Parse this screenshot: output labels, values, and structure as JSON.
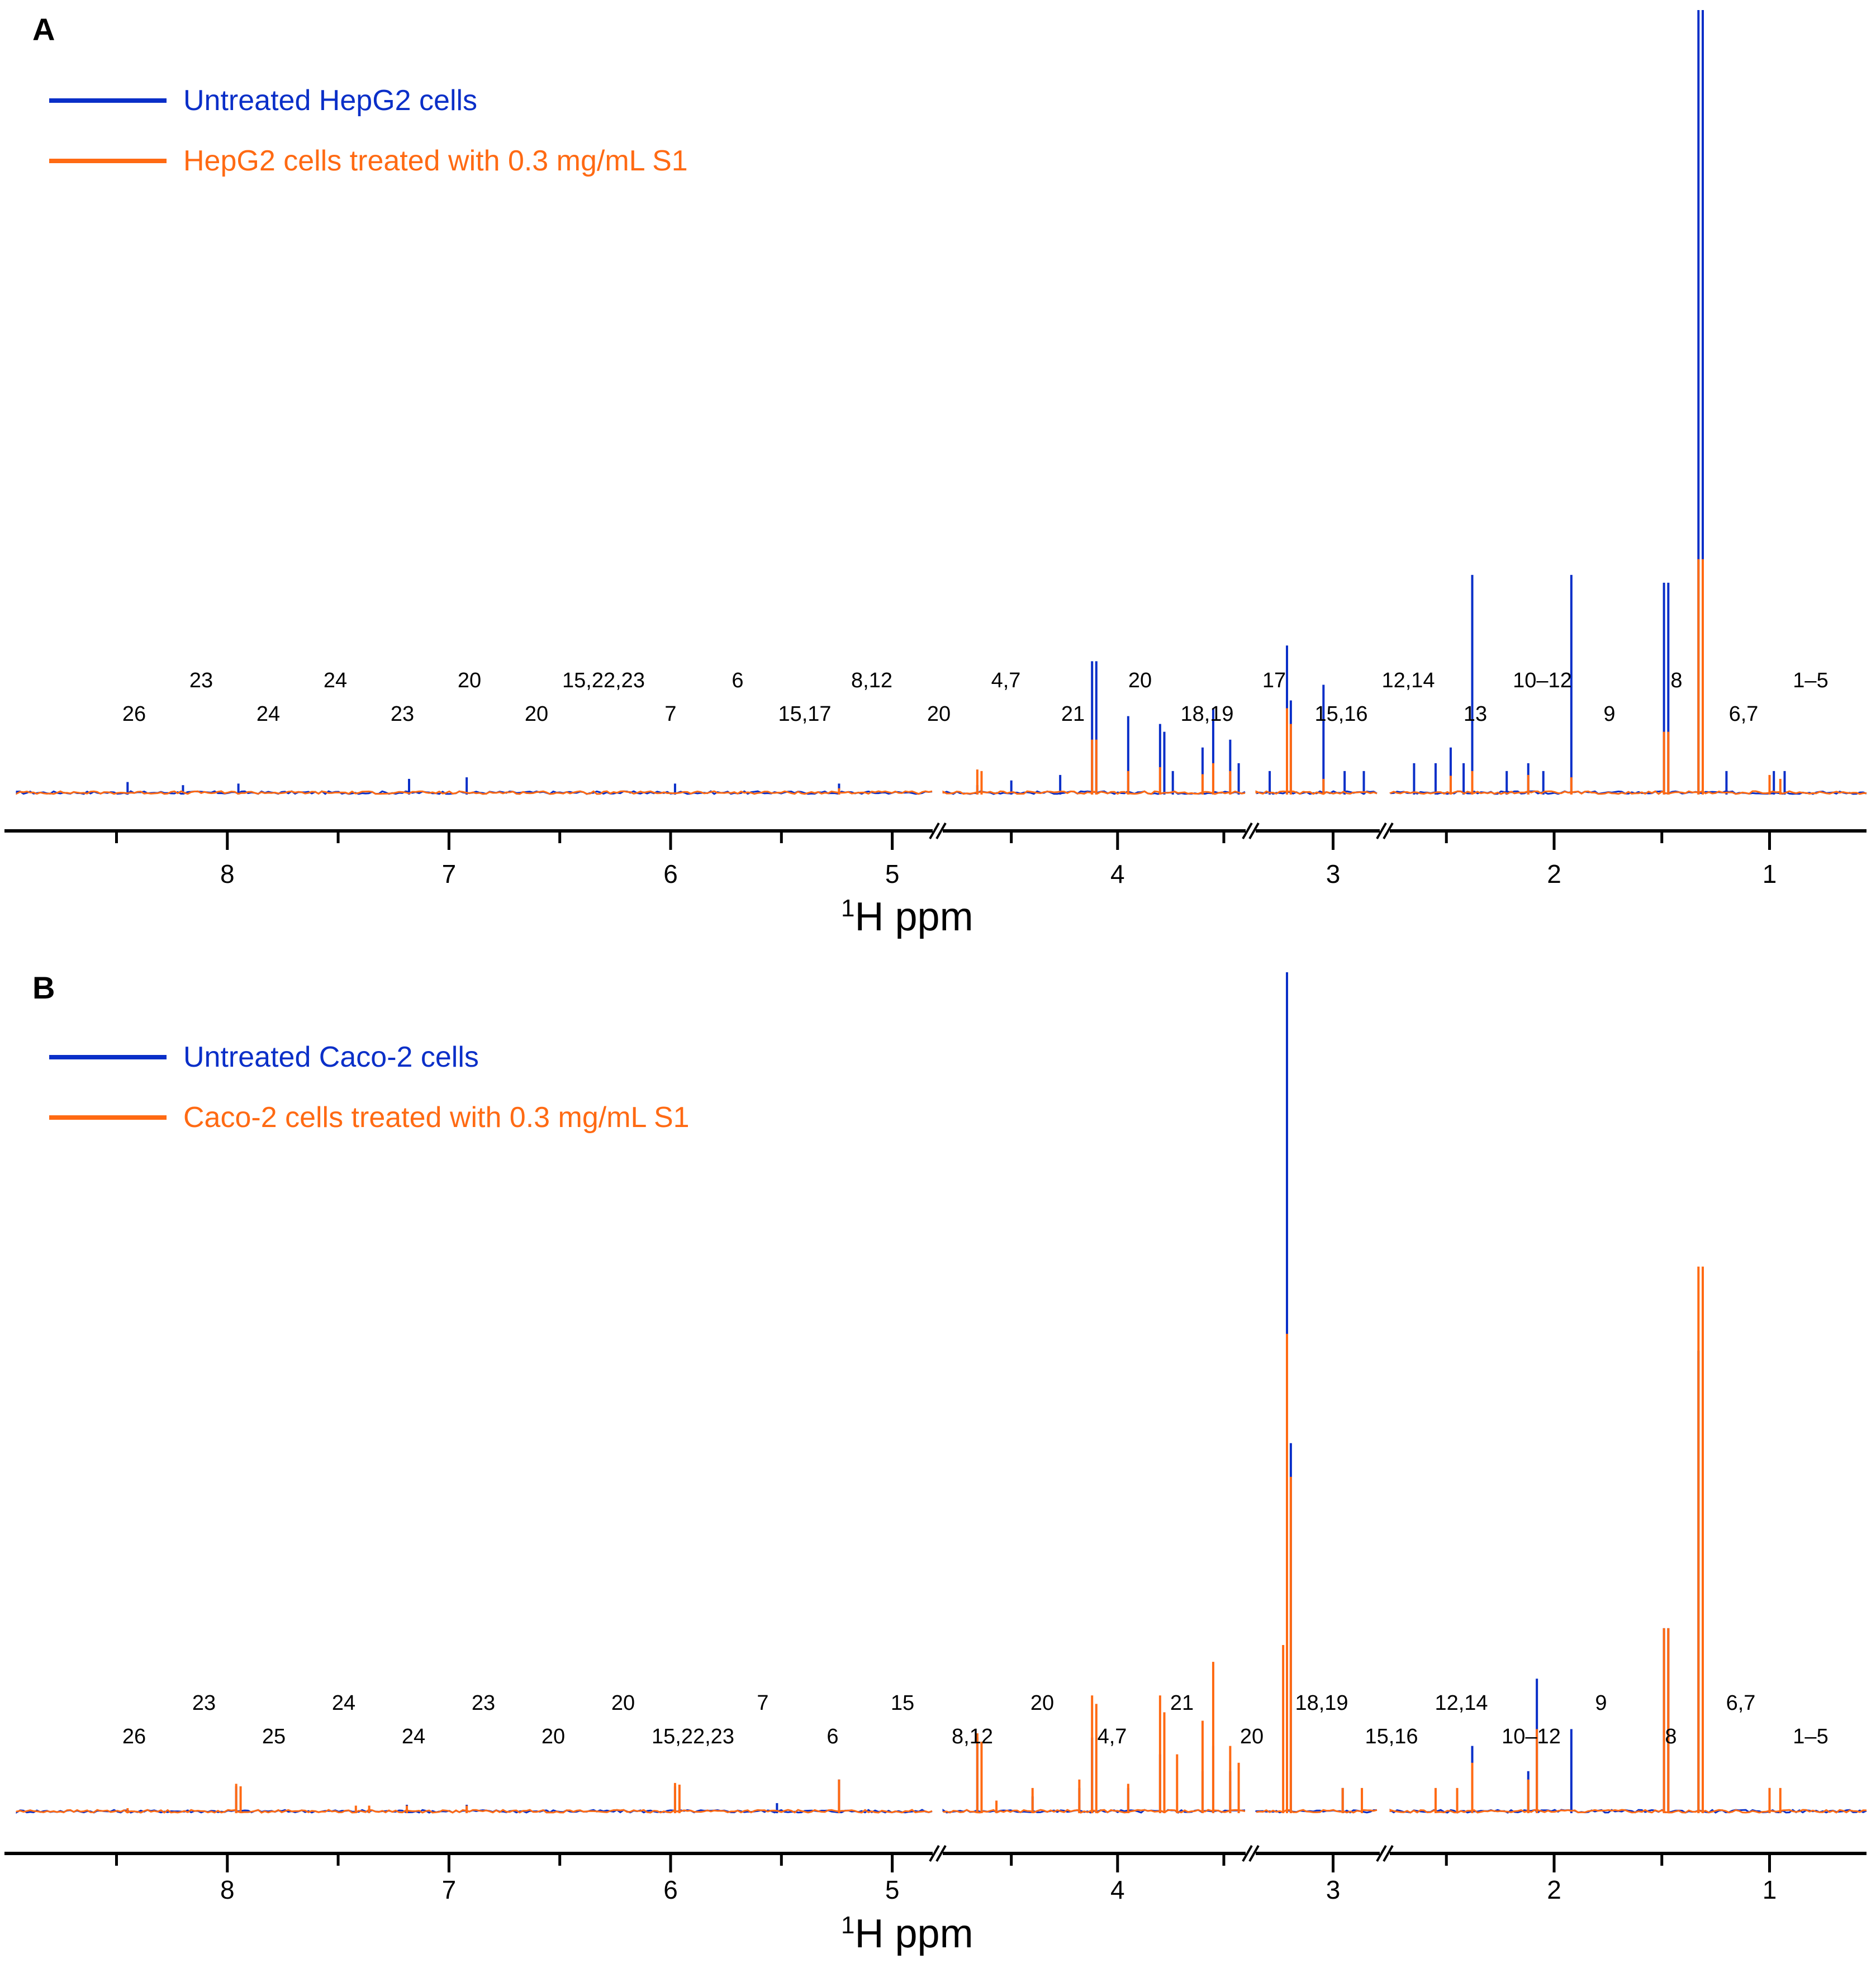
{
  "colors": {
    "untreated": "#0a2fc8",
    "treated": "#ff6a13",
    "axis": "#000000"
  },
  "chart_data": [
    {
      "type": "line",
      "panel": "A",
      "legend": [
        "Untreated HepG2 cells",
        "HepG2 cells treated with 0.3 mg/mL S1"
      ],
      "xlabel_main": "H ppm",
      "xlabel_sup": "1",
      "x_tick_labels": [
        "8",
        "7",
        "6",
        "5",
        "4",
        "3",
        "2",
        "1"
      ],
      "x_ticks": [
        8,
        7,
        6,
        5,
        4,
        3,
        2,
        1
      ],
      "x_segments": [
        [
          8.95,
          4.82
        ],
        [
          4.82,
          3.4
        ],
        [
          3.4,
          2.76
        ],
        [
          2.76,
          0.55
        ]
      ],
      "ylim": [
        0,
        100
      ],
      "series": [
        {
          "name": "Untreated HepG2 cells",
          "peaks": [
            [
              8.45,
              1.6
            ],
            [
              8.2,
              1.2
            ],
            [
              7.95,
              1.4
            ],
            [
              7.18,
              2
            ],
            [
              6.92,
              2.2
            ],
            [
              5.98,
              1.4
            ],
            [
              5.24,
              1.4
            ],
            [
              4.66,
              1.2
            ],
            [
              4.5,
              1.8
            ],
            [
              4.27,
              2.5
            ],
            [
              4.12,
              17
            ],
            [
              4.1,
              17
            ],
            [
              3.95,
              10
            ],
            [
              3.8,
              9
            ],
            [
              3.78,
              8
            ],
            [
              3.74,
              3
            ],
            [
              3.6,
              6
            ],
            [
              3.55,
              11
            ],
            [
              3.47,
              7
            ],
            [
              3.43,
              4
            ],
            [
              3.33,
              3
            ],
            [
              3.24,
              19
            ],
            [
              3.22,
              12
            ],
            [
              3.05,
              14
            ],
            [
              2.94,
              3
            ],
            [
              2.84,
              3
            ],
            [
              2.65,
              4
            ],
            [
              2.55,
              4
            ],
            [
              2.48,
              6
            ],
            [
              2.42,
              4
            ],
            [
              2.38,
              28
            ],
            [
              2.22,
              3
            ],
            [
              2.12,
              4
            ],
            [
              2.05,
              3
            ],
            [
              1.92,
              28
            ],
            [
              1.49,
              27
            ],
            [
              1.47,
              27
            ],
            [
              1.33,
              100
            ],
            [
              1.31,
              100
            ],
            [
              1.2,
              3
            ],
            [
              0.98,
              3
            ],
            [
              0.93,
              3
            ]
          ]
        },
        {
          "name": "HepG2 cells treated with 0.3 mg/mL S1",
          "peaks": [
            [
              5.24,
              0.8
            ],
            [
              4.66,
              3.2
            ],
            [
              4.64,
              3
            ],
            [
              4.12,
              7
            ],
            [
              4.1,
              7
            ],
            [
              3.95,
              3
            ],
            [
              3.8,
              3.5
            ],
            [
              3.6,
              2.6
            ],
            [
              3.55,
              4
            ],
            [
              3.47,
              3
            ],
            [
              3.24,
              11
            ],
            [
              3.22,
              9
            ],
            [
              3.05,
              2
            ],
            [
              2.48,
              2.4
            ],
            [
              2.38,
              3
            ],
            [
              2.12,
              2.5
            ],
            [
              1.92,
              2.2
            ],
            [
              1.49,
              8
            ],
            [
              1.47,
              8
            ],
            [
              1.33,
              30
            ],
            [
              1.31,
              30
            ],
            [
              1.0,
              2.5
            ],
            [
              0.95,
              2
            ]
          ]
        }
      ],
      "annotations": [
        "26",
        "23",
        "24",
        "24",
        "23",
        "20",
        "20",
        "15,22,23",
        "7",
        "6",
        "15,17",
        "8,12",
        "20",
        "4,7",
        "21",
        "20",
        "18,19",
        "17",
        "15,16",
        "12,14",
        "13",
        "10–12",
        "9",
        "8",
        "6,7",
        "1–5"
      ]
    },
    {
      "type": "line",
      "panel": "B",
      "legend": [
        "Untreated Caco-2 cells",
        "Caco-2 cells treated with 0.3 mg/mL S1"
      ],
      "xlabel_main": "H ppm",
      "xlabel_sup": "1",
      "x_tick_labels": [
        "8",
        "7",
        "6",
        "5",
        "4",
        "3",
        "2",
        "1"
      ],
      "x_ticks": [
        8,
        7,
        6,
        5,
        4,
        3,
        2,
        1
      ],
      "x_segments": [
        [
          8.95,
          4.82
        ],
        [
          4.82,
          3.4
        ],
        [
          3.4,
          2.76
        ],
        [
          2.76,
          0.55
        ]
      ],
      "ylim": [
        0,
        100
      ],
      "series": [
        {
          "name": "Untreated Caco-2 cells",
          "peaks": [
            [
              7.96,
              3.2
            ],
            [
              7.19,
              1
            ],
            [
              6.92,
              1
            ],
            [
              5.98,
              3.2
            ],
            [
              5.52,
              1.2
            ],
            [
              5.24,
              4
            ],
            [
              4.66,
              9
            ],
            [
              4.4,
              2
            ],
            [
              4.18,
              3
            ],
            [
              4.12,
              9
            ],
            [
              3.95,
              3
            ],
            [
              3.8,
              7
            ],
            [
              3.6,
              5
            ],
            [
              3.55,
              8
            ],
            [
              3.47,
              5
            ],
            [
              3.24,
              100
            ],
            [
              3.22,
              44
            ],
            [
              2.95,
              3
            ],
            [
              2.38,
              8
            ],
            [
              2.12,
              5
            ],
            [
              2.08,
              16
            ],
            [
              1.92,
              10
            ],
            [
              1.49,
              22
            ],
            [
              1.47,
              22
            ],
            [
              1.33,
              55
            ],
            [
              1.31,
              55
            ],
            [
              1.0,
              3
            ]
          ]
        },
        {
          "name": "Caco-2 cells treated with 0.3 mg/mL S1",
          "peaks": [
            [
              8.45,
              0.6
            ],
            [
              7.96,
              3.5
            ],
            [
              7.94,
              3.2
            ],
            [
              7.42,
              0.9
            ],
            [
              7.36,
              0.9
            ],
            [
              7.19,
              0.9
            ],
            [
              6.92,
              0.9
            ],
            [
              5.98,
              3.6
            ],
            [
              5.96,
              3.4
            ],
            [
              5.24,
              4
            ],
            [
              4.66,
              9.5
            ],
            [
              4.64,
              8.5
            ],
            [
              4.57,
              1.5
            ],
            [
              4.4,
              3
            ],
            [
              4.18,
              4
            ],
            [
              4.12,
              14
            ],
            [
              4.1,
              13
            ],
            [
              3.95,
              3.5
            ],
            [
              3.8,
              14
            ],
            [
              3.78,
              12
            ],
            [
              3.72,
              7
            ],
            [
              3.6,
              11
            ],
            [
              3.55,
              18
            ],
            [
              3.47,
              8
            ],
            [
              3.43,
              6
            ],
            [
              3.26,
              20
            ],
            [
              3.24,
              57
            ],
            [
              3.22,
              40
            ],
            [
              2.95,
              3
            ],
            [
              2.85,
              3
            ],
            [
              2.55,
              3
            ],
            [
              2.45,
              3
            ],
            [
              2.38,
              6
            ],
            [
              2.12,
              4
            ],
            [
              2.08,
              10
            ],
            [
              1.49,
              22
            ],
            [
              1.47,
              22
            ],
            [
              1.33,
              65
            ],
            [
              1.31,
              65
            ],
            [
              1.0,
              3
            ],
            [
              0.95,
              3
            ]
          ]
        }
      ],
      "annotations": [
        "26",
        "23",
        "25",
        "24",
        "24",
        "23",
        "20",
        "20",
        "15,22,23",
        "7",
        "6",
        "15",
        "8,12",
        "20",
        "4,7",
        "21",
        "20",
        "18,19",
        "15,16",
        "12,14",
        "10–12",
        "9",
        "8",
        "6,7",
        "1–5"
      ]
    }
  ]
}
